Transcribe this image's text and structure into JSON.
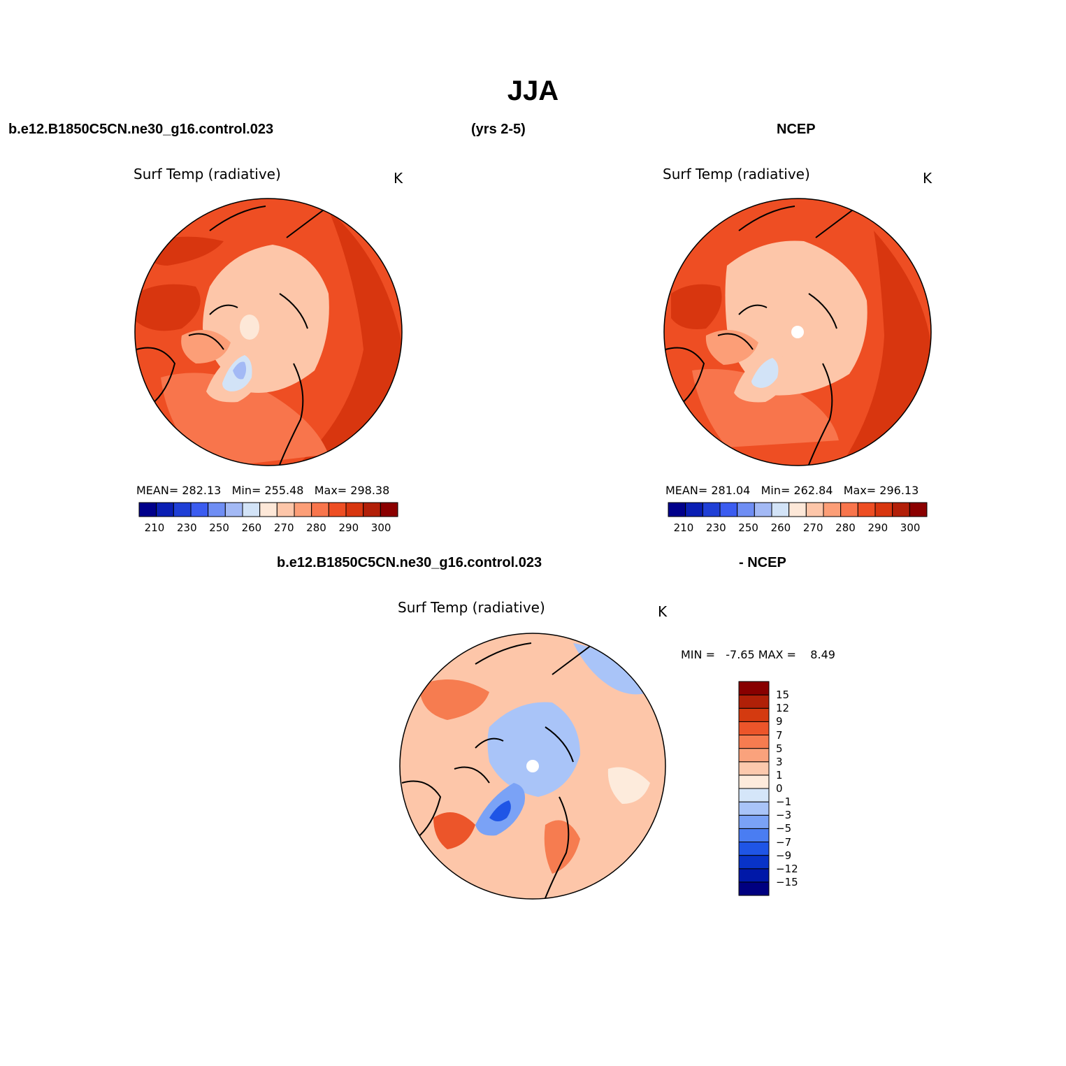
{
  "title": "JJA",
  "header": {
    "case_name": "b.e12.B1850C5CN.ne30_g16.control.023",
    "years": "(yrs 2-5)",
    "obs_name": "NCEP"
  },
  "diff_header": {
    "case_name": "b.e12.B1850C5CN.ne30_g16.control.023",
    "obs_name": "- NCEP"
  },
  "panels": [
    {
      "id": "model",
      "variable": "Surf Temp (radiative)",
      "units": "K",
      "stats": {
        "mean_label": "MEAN=",
        "mean": "282.13",
        "min_label": "Min=",
        "min": "255.48",
        "max_label": "Max=",
        "max": "298.38"
      }
    },
    {
      "id": "obs",
      "variable": "Surf Temp (radiative)",
      "units": "K",
      "stats": {
        "mean_label": "MEAN=",
        "mean": "281.04",
        "min_label": "Min=",
        "min": "262.84",
        "max_label": "Max=",
        "max": "296.13"
      }
    },
    {
      "id": "diff",
      "variable": "Surf Temp (radiative)",
      "units": "K",
      "stats": {
        "min_label": "MIN =",
        "min": "-7.65",
        "max_label": "MAX =",
        "max": "8.49"
      }
    }
  ],
  "abs_colorbar": {
    "colors": [
      "#00008b",
      "#0a1fb4",
      "#1f3fd6",
      "#3b5cf0",
      "#6f8ef4",
      "#a3b9f5",
      "#d2e3f7",
      "#fde8d8",
      "#fdc6a9",
      "#fc9e77",
      "#f8754c",
      "#ee4e23",
      "#d8360f",
      "#b21f08",
      "#8b0000"
    ],
    "tick_labels": [
      "210",
      "230",
      "250",
      "260",
      "270",
      "280",
      "290",
      "300"
    ]
  },
  "diff_colorbar": {
    "colors": [
      "#000080",
      "#0018a8",
      "#0833c8",
      "#1f55e6",
      "#4a7df2",
      "#7aa2f6",
      "#a9c4f8",
      "#d5e6f9",
      "#fdebdc",
      "#fcc9ad",
      "#faa27c",
      "#f67c50",
      "#ec552a",
      "#d43a10",
      "#b02008",
      "#880000"
    ],
    "tick_labels": [
      "15",
      "12",
      "9",
      "7",
      "5",
      "3",
      "1",
      "0",
      "−1",
      "−3",
      "−5",
      "−7",
      "−9",
      "−12",
      "−15"
    ]
  },
  "colors": {
    "warm_dark": "#d8360f",
    "warm_mid": "#ee4e23",
    "warm_light": "#fc9e77",
    "peach": "#fdc6a9",
    "cool_light": "#d2e3f7",
    "cool_mid": "#a3b9f5",
    "cool_dark": "#1f3fd6"
  }
}
